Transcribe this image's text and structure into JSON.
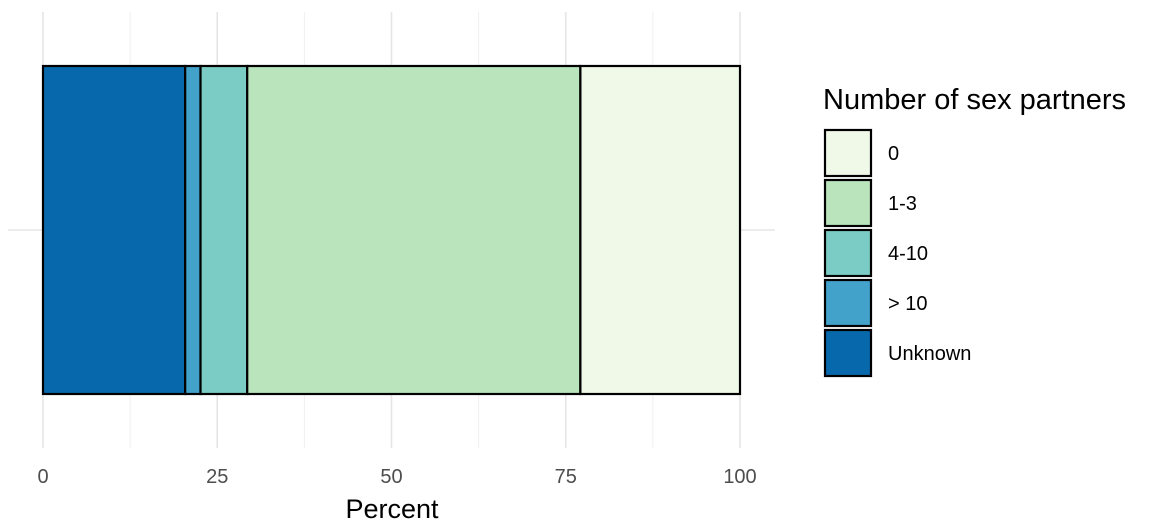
{
  "chart_data": {
    "type": "bar",
    "orientation": "horizontal",
    "stacked": true,
    "xlabel": "Percent",
    "ylabel": "",
    "xlim": [
      0,
      100
    ],
    "x_ticks": [
      0,
      25,
      50,
      75,
      100
    ],
    "grid": true,
    "legend_title": "Number of sex partners",
    "legend_position": "right",
    "series": [
      {
        "name": "Unknown",
        "value": 20.4,
        "color": "#0868AC"
      },
      {
        "name": "> 10",
        "value": 2.2,
        "color": "#43A2CA"
      },
      {
        "name": "4-10",
        "value": 6.7,
        "color": "#7BCCC4"
      },
      {
        "name": "1-3",
        "value": 47.8,
        "color": "#BAE4BC"
      },
      {
        "name": "0",
        "value": 22.9,
        "color": "#F0F9E8"
      }
    ],
    "legend_order": [
      "0",
      "1-3",
      "4-10",
      "> 10",
      "Unknown"
    ]
  }
}
